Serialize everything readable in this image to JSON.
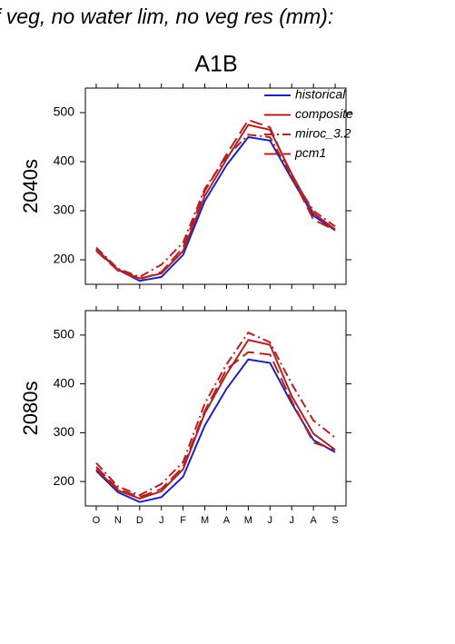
{
  "title": "f veg, no water lim, no veg res (mm):",
  "subtitle": "A1B",
  "chart_data": [
    {
      "type": "line",
      "row_label": "2040s",
      "legend": "upper right",
      "ylim": [
        150,
        550
      ],
      "yticks": [
        200,
        300,
        400,
        500
      ],
      "series": [
        {
          "name": "historical",
          "color": "#2222bb",
          "dash": "solid",
          "values": [
            220,
            180,
            157,
            165,
            210,
            320,
            393,
            450,
            443,
            365,
            290,
            260
          ]
        },
        {
          "name": "composite",
          "color": "#b22222",
          "dash": "solid",
          "values": [
            222,
            180,
            162,
            172,
            218,
            330,
            405,
            475,
            465,
            375,
            295,
            262
          ]
        },
        {
          "name": "miroc_3.2",
          "color": "#b22222",
          "dash": "dashdot",
          "values": [
            225,
            182,
            165,
            190,
            235,
            345,
            410,
            455,
            450,
            370,
            300,
            268
          ]
        },
        {
          "name": "pcm1",
          "color": "#b22222",
          "dash": "dashed",
          "values": [
            218,
            178,
            160,
            175,
            225,
            340,
            415,
            485,
            470,
            370,
            282,
            260
          ]
        }
      ]
    },
    {
      "type": "line",
      "row_label": "2080s",
      "categories": [
        "O",
        "N",
        "D",
        "J",
        "F",
        "M",
        "A",
        "M",
        "J",
        "J",
        "A",
        "S"
      ],
      "ylim": [
        150,
        550
      ],
      "yticks": [
        200,
        300,
        400,
        500
      ],
      "series": [
        {
          "color": "#2222bb",
          "dash": "solid",
          "values": [
            222,
            178,
            158,
            168,
            210,
            315,
            390,
            450,
            443,
            360,
            285,
            260
          ]
        },
        {
          "color": "#b22222",
          "dash": "solid",
          "values": [
            225,
            182,
            165,
            180,
            225,
            340,
            420,
            490,
            480,
            375,
            298,
            265
          ]
        },
        {
          "color": "#b22222",
          "dash": "dashdot",
          "values": [
            238,
            190,
            172,
            195,
            240,
            360,
            440,
            505,
            485,
            400,
            325,
            290
          ]
        },
        {
          "color": "#b22222",
          "dash": "dashed",
          "values": [
            230,
            185,
            168,
            185,
            230,
            345,
            430,
            465,
            460,
            365,
            280,
            265
          ]
        }
      ]
    }
  ]
}
